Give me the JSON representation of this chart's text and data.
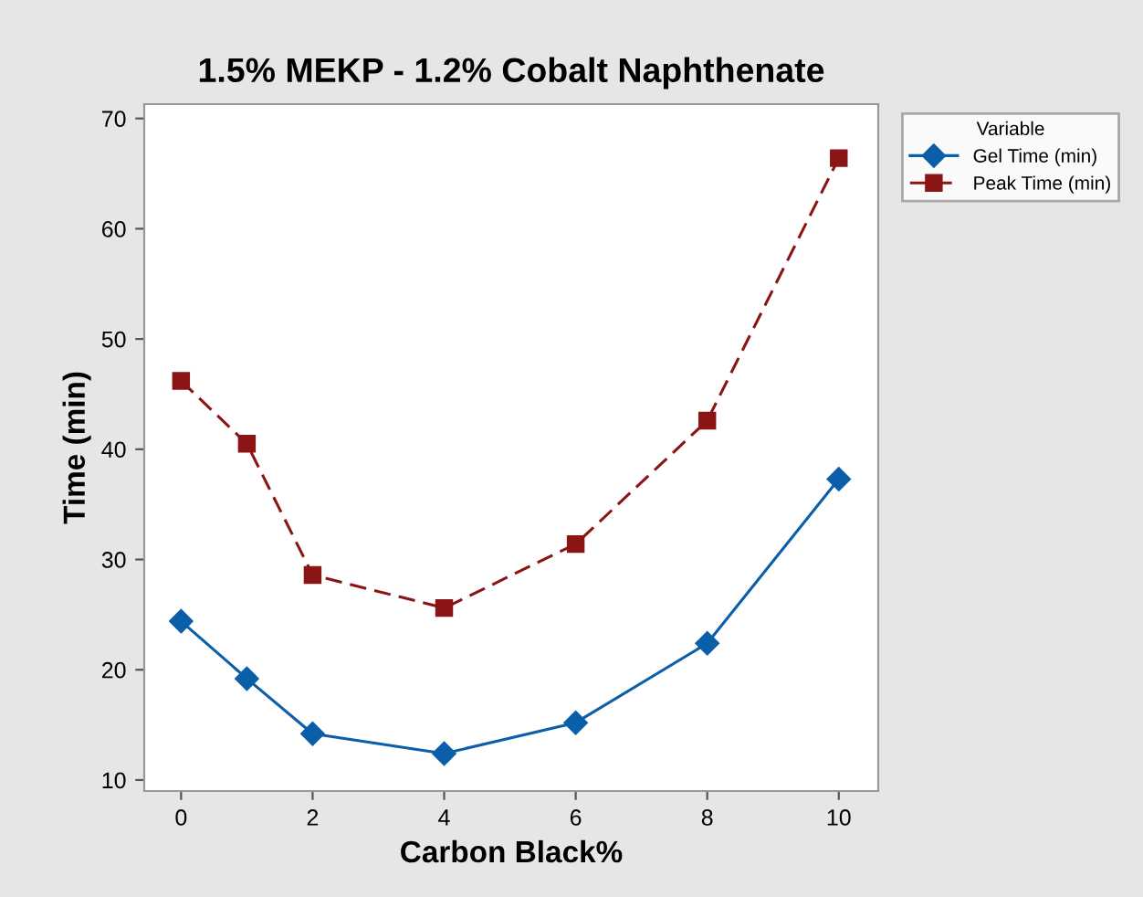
{
  "chart_data": {
    "type": "line",
    "title": "1.5% MEKP - 1.2% Cobalt Naphthenate",
    "xlabel": "Carbon Black%",
    "ylabel": "Time (min)",
    "legend_title": "Variable",
    "x": [
      0,
      1,
      2,
      4,
      6,
      8,
      10
    ],
    "series": [
      {
        "name": "Gel Time (min)",
        "color": "#0b5ea8",
        "marker": "diamond",
        "line_style": "solid",
        "values": [
          24.4,
          19.2,
          14.2,
          12.4,
          15.2,
          22.4,
          37.3
        ]
      },
      {
        "name": "Peak Time (min)",
        "color": "#8b1414",
        "marker": "square",
        "line_style": "dashed",
        "values": [
          46.2,
          40.5,
          28.6,
          25.6,
          31.4,
          42.6,
          66.4
        ]
      }
    ],
    "xlim": [
      -0.56,
      10.6
    ],
    "xticks": [
      0,
      2,
      4,
      6,
      8,
      10
    ],
    "ylim": [
      9,
      71.3
    ],
    "yticks": [
      10,
      20,
      30,
      40,
      50,
      60,
      70
    ],
    "grid": false,
    "legend": "right"
  }
}
